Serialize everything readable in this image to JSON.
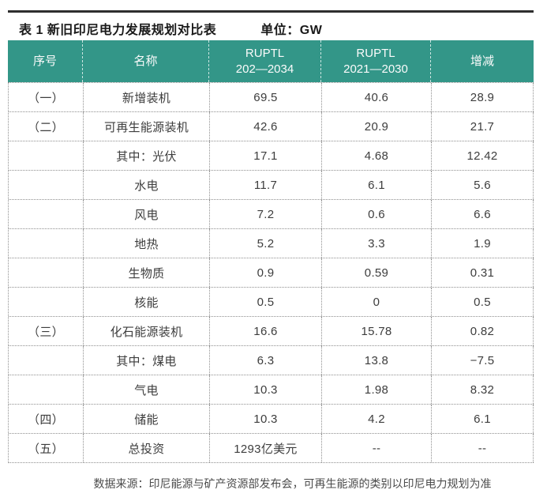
{
  "caption": {
    "title": "表 1 新旧印尼电力发展规划对比表",
    "unit": "单位：GW"
  },
  "colors": {
    "header_teal": "#339688",
    "header_text": "#fbfbfb",
    "body_text": "#3d3d3d",
    "border_dotted": "#8f8f8f",
    "top_rule": "#2e2e2e"
  },
  "table": {
    "headers": [
      "序号",
      "名称",
      "RUPTL\n202—2034",
      "RUPTL\n2021—2030",
      "增减"
    ],
    "rows": [
      {
        "no": "（一）",
        "name": "新增装机",
        "v1": "69.5",
        "v2": "40.6",
        "v3": "28.9"
      },
      {
        "no": "（二）",
        "name": "可再生能源装机",
        "v1": "42.6",
        "v2": "20.9",
        "v3": "21.7"
      },
      {
        "no": "",
        "name": "其中：光伏",
        "v1": "17.1",
        "v2": "4.68",
        "v3": "12.42"
      },
      {
        "no": "",
        "name": "水电",
        "v1": "11.7",
        "v2": "6.1",
        "v3": "5.6"
      },
      {
        "no": "",
        "name": "风电",
        "v1": "7.2",
        "v2": "0.6",
        "v3": "6.6"
      },
      {
        "no": "",
        "name": "地热",
        "v1": "5.2",
        "v2": "3.3",
        "v3": "1.9"
      },
      {
        "no": "",
        "name": "生物质",
        "v1": "0.9",
        "v2": "0.59",
        "v3": "0.31"
      },
      {
        "no": "",
        "name": "核能",
        "v1": "0.5",
        "v2": "0",
        "v3": "0.5"
      },
      {
        "no": "（三）",
        "name": "化石能源装机",
        "v1": "16.6",
        "v2": "15.78",
        "v3": "0.82"
      },
      {
        "no": "",
        "name": "其中：煤电",
        "v1": "6.3",
        "v2": "13.8",
        "v3": "−7.5"
      },
      {
        "no": "",
        "name": "气电",
        "v1": "10.3",
        "v2": "1.98",
        "v3": "8.32"
      },
      {
        "no": "（四）",
        "name": "储能",
        "v1": "10.3",
        "v2": "4.2",
        "v3": "6.1"
      },
      {
        "no": "（五）",
        "name": "总投资",
        "v1": "1293亿美元",
        "v2": "--",
        "v3": "--"
      }
    ]
  },
  "footer": {
    "note": "数据来源：印尼能源与矿产资源部发布会，可再生能源的类别以印尼电力规划为准"
  }
}
